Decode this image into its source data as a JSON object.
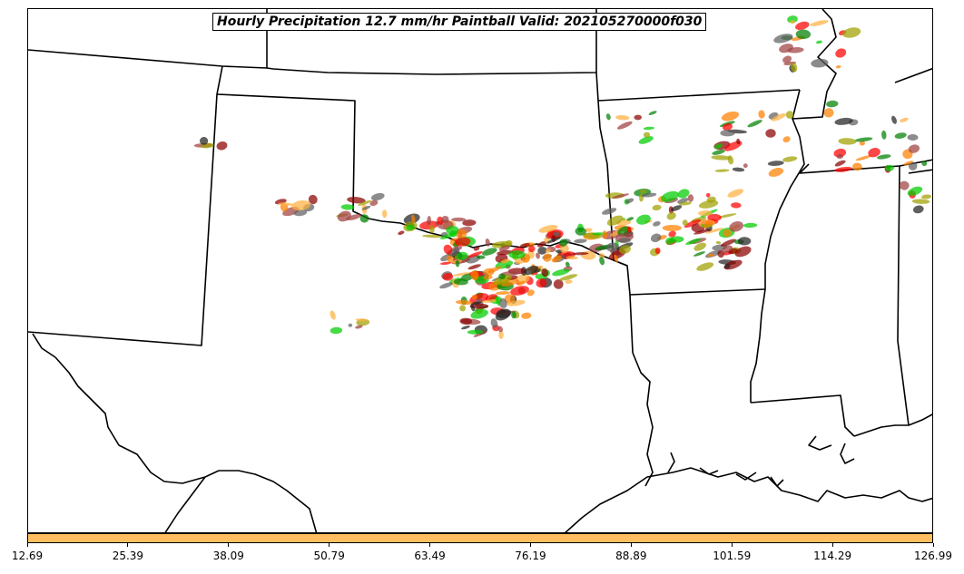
{
  "title": "Hourly Precipitation 12.7 mm/hr Paintball Valid: 202105270000f030",
  "colorbar": {
    "fill_color": "#ffbf60",
    "tick_labels": [
      "12.69",
      "25.39",
      "38.09",
      "50.79",
      "63.49",
      "76.19",
      "88.89",
      "101.59",
      "114.29",
      "126.99"
    ],
    "range": [
      12.69,
      126.99
    ]
  },
  "member_colors": [
    "#ff0000",
    "#ff8000",
    "#ffb040",
    "#a0a000",
    "#8b0000",
    "#a04040",
    "#008000",
    "#00cc00",
    "#222222",
    "#606060"
  ],
  "basemap": {
    "state_line_color": "#000000",
    "coastline_color": "#000000"
  }
}
